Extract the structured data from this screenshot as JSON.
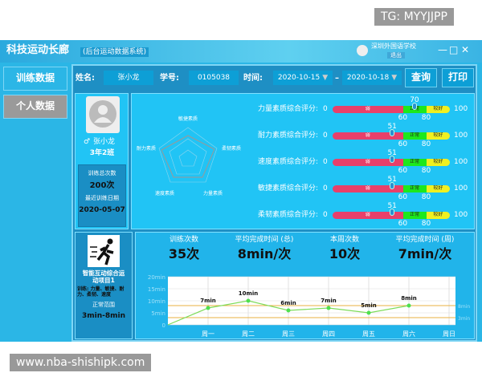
{
  "watermarks": {
    "top": "TG: MYYJJPP",
    "bottom": "www.nba-shishipk.com"
  },
  "window": {
    "title": "科技运动长廊",
    "subtitle": "(后台运动数据系统)",
    "school": "深圳外国语学校",
    "logout": "退出",
    "minimize": "—",
    "maximize": "□",
    "close": "✕"
  },
  "sidebar": {
    "items": [
      {
        "label": "训练数据"
      },
      {
        "label": "个人数据"
      }
    ]
  },
  "toolbar": {
    "name_label": "姓名:",
    "name_value": "张小龙",
    "id_label": "学号:",
    "id_value": "0105038",
    "time_label": "时间:",
    "date_from": "2020-10-15",
    "date_to": "2020-10-18",
    "dash": "–",
    "query": "查询",
    "print": "打印"
  },
  "profile": {
    "gender_icon": "male-icon",
    "name": "张小龙",
    "class": "3年2班",
    "total_label": "训练总次数",
    "total_value": "200次",
    "recent_label": "最近训练日期",
    "recent_value": "2020-05-07"
  },
  "radar": {
    "labels": [
      "敏捷素质",
      "柔韧素质",
      "力量素质",
      "速度素质",
      "耐力素质"
    ]
  },
  "scores": {
    "min": "0",
    "max": "100",
    "t1": "60",
    "t2": "80",
    "seg_weak": "弱",
    "seg_normal": "正常",
    "seg_good": "较好",
    "items": [
      {
        "label": "力量素质综合评分:",
        "value": 70
      },
      {
        "label": "耐力素质综合评分:",
        "value": 51
      },
      {
        "label": "速度素质综合评分:",
        "value": 51
      },
      {
        "label": "敏捷素质综合评分:",
        "value": 51
      },
      {
        "label": "柔韧素质综合评分:",
        "value": 51
      }
    ]
  },
  "activity": {
    "icon": "running-icon",
    "title": "智能互动综合运动项目1",
    "train": "训练: 力量、敏捷、耐力、柔韧、速度",
    "range_label": "正常范围",
    "range_value": "3min-8min"
  },
  "stats": [
    {
      "label": "训练次数",
      "value": "35次"
    },
    {
      "label": "平均完成时间 (总)",
      "value": "8min/次"
    },
    {
      "label": "本周次数",
      "value": "10次"
    },
    {
      "label": "平均完成时间 (周)",
      "value": "7min/次"
    }
  ],
  "chart_data": {
    "type": "line",
    "categories": [
      "",
      "周一",
      "周二",
      "周三",
      "周四",
      "周五",
      "周六",
      "周日"
    ],
    "values": [
      0,
      7,
      10,
      6,
      7,
      5,
      8,
      null
    ],
    "data_labels": [
      "",
      "7min",
      "10min",
      "6min",
      "7min",
      "5min",
      "8min",
      ""
    ],
    "ylim": [
      0,
      20
    ],
    "yticks": [
      "0",
      "5min",
      "10min",
      "15min",
      "20min"
    ],
    "ytick_values": [
      0,
      5,
      10,
      15,
      20
    ],
    "reference_lines": [
      {
        "value": 8,
        "label": "8min"
      },
      {
        "value": 3,
        "label": "3min"
      }
    ],
    "line_color": "#7ddc5a",
    "ref_color": "#e8b040",
    "grid": true
  }
}
